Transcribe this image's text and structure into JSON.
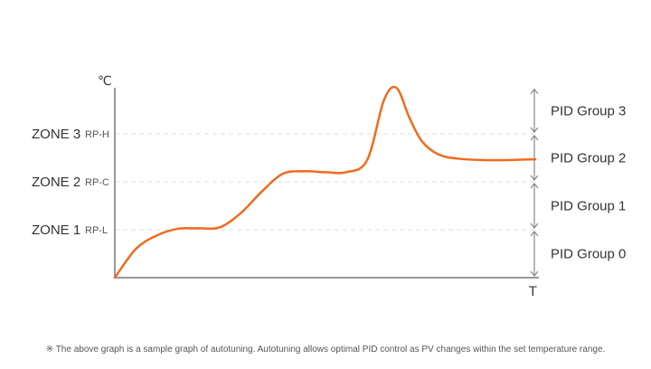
{
  "chart_data": {
    "type": "line",
    "title": "",
    "ylabel": "℃",
    "xlabel": "T",
    "zones": [
      {
        "name": "ZONE 1",
        "ramp_label": "RP-L"
      },
      {
        "name": "ZONE 2",
        "ramp_label": "RP-C"
      },
      {
        "name": "ZONE 3",
        "ramp_label": "RP-H"
      }
    ],
    "pid_groups": [
      "PID Group 0",
      "PID Group 1",
      "PID Group 2",
      "PID Group 3"
    ],
    "series": [
      {
        "color": "#f06b1e",
        "shape": "autotuning temperature curve",
        "x": [
          0,
          0.25,
          0.5,
          0.75,
          1.0,
          1.25,
          1.5,
          1.75,
          2.0,
          2.25,
          2.5,
          2.75,
          3.0,
          3.2,
          3.35,
          3.5,
          3.65,
          3.85,
          4.1,
          4.5,
          5.0
        ],
        "y": [
          0,
          0.6,
          0.88,
          1.02,
          1.03,
          1.05,
          1.35,
          1.8,
          2.17,
          2.22,
          2.2,
          2.2,
          2.45,
          3.7,
          3.96,
          3.35,
          2.85,
          2.57,
          2.48,
          2.45,
          2.47
        ]
      }
    ],
    "xlim": [
      0,
      5
    ],
    "ylim": [
      0,
      4
    ]
  },
  "footnote": "※ The above graph is a sample graph of autotuning. Autotuning allows optimal PID control as PV changes within the set temperature range."
}
